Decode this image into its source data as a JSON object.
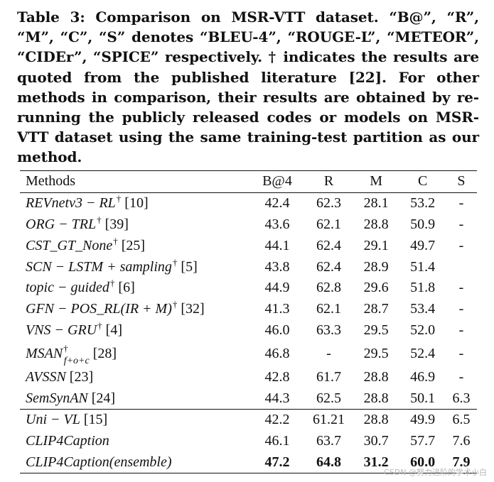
{
  "caption": "Table 3: Comparison on MSR-VTT dataset. “B@”, “R”, “M”, “C”, “S” denotes “BLEU-4”, “ROUGE-L”, “METEOR”, “CIDEr”, “SPICE” respectively. † indicates the results are quoted from the published literature [22]. For other methods in comparison, their results are obtained by re-running the publicly released codes or models on MSR-VTT dataset using the same training-test partition as our method.",
  "table": {
    "headers": {
      "method": "Methods",
      "b4": "B@4",
      "r": "R",
      "m": "M",
      "c": "C",
      "s": "S"
    },
    "rows": [
      {
        "method": "REVnetv3 − RL",
        "dagger": "†",
        "sub": "",
        "ref": "[10]",
        "b4": "42.4",
        "r": "62.3",
        "m": "28.1",
        "c": "53.2",
        "s": "-"
      },
      {
        "method": "ORG − TRL",
        "dagger": "†",
        "sub": "",
        "ref": "[39]",
        "b4": "43.6",
        "r": "62.1",
        "m": "28.8",
        "c": "50.9",
        "s": "-"
      },
      {
        "method": "CST_GT_None",
        "dagger": "†",
        "sub": "",
        "ref": "[25]",
        "b4": "44.1",
        "r": "62.4",
        "m": "29.1",
        "c": "49.7",
        "s": "-"
      },
      {
        "method": "SCN − LSTM + sampling",
        "dagger": "†",
        "sub": "",
        "ref": "[5]",
        "b4": "43.8",
        "r": "62.4",
        "m": "28.9",
        "c": "51.4",
        "s": ""
      },
      {
        "method": "topic − guided",
        "dagger": "†",
        "sub": "",
        "ref": "[6]",
        "b4": "44.9",
        "r": "62.8",
        "m": "29.6",
        "c": "51.8",
        "s": "-"
      },
      {
        "method": "GFN − POS_RL(IR + M)",
        "dagger": "†",
        "sub": "",
        "ref": "[32]",
        "b4": "41.3",
        "r": "62.1",
        "m": "28.7",
        "c": "53.4",
        "s": "-"
      },
      {
        "method": "VNS − GRU",
        "dagger": "†",
        "sub": "",
        "ref": "[4]",
        "b4": "46.0",
        "r": "63.3",
        "m": "29.5",
        "c": "52.0",
        "s": "-"
      },
      {
        "method": "MSAN",
        "dagger": "†",
        "sub": "f+o+c",
        "ref": "[28]",
        "b4": "46.8",
        "r": "-",
        "m": "29.5",
        "c": "52.4",
        "s": "-"
      },
      {
        "method": "AVSSN",
        "dagger": "",
        "sub": "",
        "ref": "[23]",
        "b4": "42.8",
        "r": "61.7",
        "m": "28.8",
        "c": "46.9",
        "s": "-"
      },
      {
        "method": "SemSynAN",
        "dagger": "",
        "sub": "",
        "ref": "[24]",
        "b4": "44.3",
        "r": "62.5",
        "m": "28.8",
        "c": "50.1",
        "s": "6.3"
      },
      {
        "method": "Uni − VL",
        "dagger": "",
        "sub": "",
        "ref": "[15]",
        "b4": "42.2",
        "r": "61.21",
        "m": "28.8",
        "c": "49.9",
        "s": "6.5"
      },
      {
        "method": "CLIP4Caption",
        "dagger": "",
        "sub": "",
        "ref": "",
        "b4": "46.1",
        "r": "63.7",
        "m": "30.7",
        "c": "57.7",
        "s": "7.6"
      },
      {
        "method": "CLIP4Caption(ensemble)",
        "dagger": "",
        "sub": "",
        "ref": "",
        "b4": "47.2",
        "r": "64.8",
        "m": "31.2",
        "c": "60.0",
        "s": "7.9"
      }
    ]
  },
  "watermark": "CSDN @努力进阶的学术小白"
}
